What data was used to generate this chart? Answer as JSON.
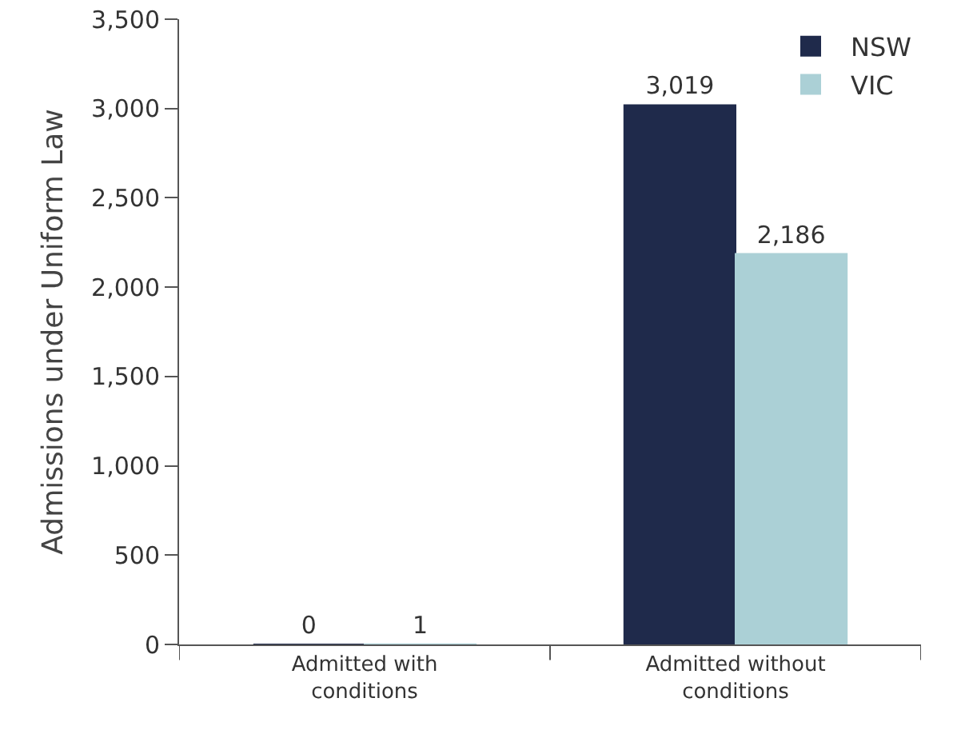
{
  "chart_data": {
    "type": "bar",
    "ylabel": "Admissions under Uniform Law",
    "categories": [
      "Admitted with conditions",
      "Admitted without conditions"
    ],
    "series": [
      {
        "name": "NSW",
        "color": "#1f2a4b",
        "values": [
          0,
          3019
        ],
        "value_labels": [
          "0",
          "3,019"
        ]
      },
      {
        "name": "VIC",
        "color": "#abd0d6",
        "values": [
          1,
          2186
        ],
        "value_labels": [
          "1",
          "2,186"
        ]
      }
    ],
    "ylim": [
      0,
      3500
    ],
    "yticks": [
      0,
      500,
      {
        "value": 1000,
        "label": "1,000"
      },
      {
        "value": 1500,
        "label": "1,500"
      },
      {
        "value": 2000,
        "label": "2,000"
      },
      {
        "value": 2500,
        "label": "2,500"
      },
      {
        "value": 3000,
        "label": "3,000"
      },
      {
        "value": 3500,
        "label": "3,500"
      }
    ],
    "legend": "top right",
    "grid": false
  }
}
